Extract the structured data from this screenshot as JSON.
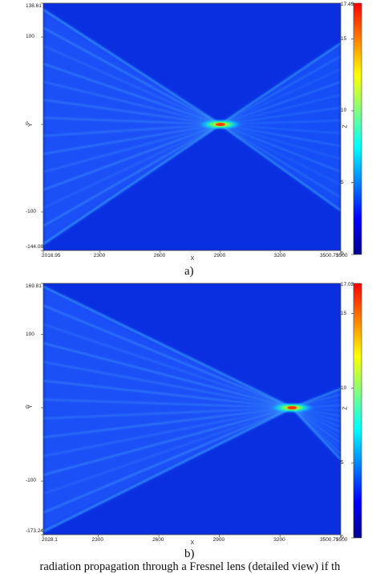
{
  "caption": "radiation propagation through a Fresnel lens (detailed view) if th",
  "colormap": [
    "#00008f",
    "#0000ff",
    "#0080ff",
    "#00ffff",
    "#80ff80",
    "#ffff00",
    "#ff8000",
    "#ff0000"
  ],
  "chart_data": [
    {
      "type": "heatmap",
      "panel_label": "a)",
      "xlabel": "X",
      "ylabel": "Y",
      "colorbar_label": "Z",
      "xlim": [
        2016.95,
        3500.75
      ],
      "ylim": [
        -144.08,
        138.61
      ],
      "x_ticks": [
        "2016.95",
        "2300",
        "2600",
        "2900",
        "3200",
        "3500.75",
        "3500"
      ],
      "y_ticks": [
        "138.61",
        "100",
        "0",
        "-100",
        "-144.08"
      ],
      "colorbar_range": [
        0,
        17.49
      ],
      "colorbar_ticks": [
        "17.49",
        "15",
        "10",
        "5",
        "0"
      ],
      "focus": {
        "x": 2900,
        "y": 0,
        "peak": 17.49
      }
    },
    {
      "type": "heatmap",
      "panel_label": "b)",
      "xlabel": "X",
      "ylabel": "Y",
      "colorbar_label": "Z",
      "xlim": [
        2028.1,
        3500.75
      ],
      "ylim": [
        -173.24,
        169.81
      ],
      "x_ticks": [
        "2028.1",
        "2300",
        "2600",
        "2900",
        "3200",
        "3500.75",
        "3500"
      ],
      "y_ticks": [
        "169.81",
        "100",
        "0",
        "-100",
        "-173.24"
      ],
      "colorbar_range": [
        0,
        17.02
      ],
      "colorbar_ticks": [
        "17.02",
        "15",
        "10",
        "5",
        "0"
      ],
      "focus": {
        "x": 3260,
        "y": 0,
        "peak": 17.02
      }
    }
  ]
}
